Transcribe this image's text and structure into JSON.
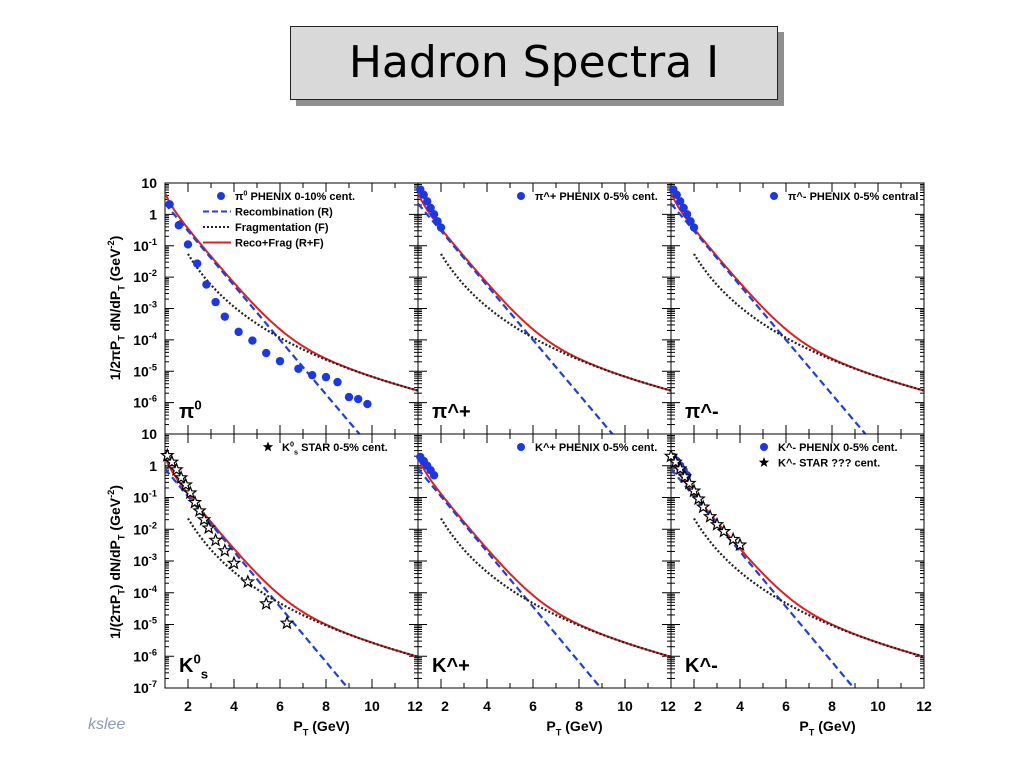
{
  "slide": {
    "title": "Hadron Spectra I",
    "footer": "kslee"
  },
  "chart_data": {
    "type": "scatter",
    "grid": false,
    "yscale": "log",
    "ylabel_top": "1/2πP_T dN/dP_T (GeV^-2)",
    "ylabel_bottom": "1/(2πP_T) dN/dP_T (GeV^-2)",
    "xlabel": "P_T (GeV)",
    "xlim": [
      1,
      12
    ],
    "x_ticks": [
      "2",
      "4",
      "6",
      "8",
      "10",
      "12"
    ],
    "panels": [
      {
        "label": "π^0",
        "ylim": [
          1e-07,
          10
        ],
        "ytick_exps": [
          1,
          0,
          -1,
          -2,
          -3,
          -4,
          -5,
          -6
        ],
        "legend": [
          {
            "marker": "dot",
            "text": "π^0 PHENIX 0-10% cent."
          },
          {
            "marker": "dash",
            "text": "Recombination (R)"
          },
          {
            "marker": "dots",
            "text": "Fragmentation (F)"
          },
          {
            "marker": "solid",
            "text": "Reco+Frag (R+F)"
          }
        ],
        "reco_norm": 2.2,
        "frag_norm": 0.055,
        "frag_start": 2.0,
        "data_dots": [
          [
            1.2,
            2.1
          ],
          [
            1.6,
            0.45
          ],
          [
            2.0,
            0.11
          ],
          [
            2.4,
            0.027
          ],
          [
            2.8,
            0.0058
          ],
          [
            3.2,
            0.0016
          ],
          [
            3.6,
            0.00055
          ],
          [
            4.2,
            0.00018
          ],
          [
            4.8,
            9.5e-05
          ],
          [
            5.4,
            3.8e-05
          ],
          [
            6.0,
            2.1e-05
          ],
          [
            6.8,
            1.2e-05
          ],
          [
            7.4,
            7.5e-06
          ],
          [
            8.0,
            6.5e-06
          ],
          [
            8.5,
            4.5e-06
          ],
          [
            9.0,
            1.5e-06
          ],
          [
            9.4,
            1.3e-06
          ],
          [
            9.8,
            9e-07
          ]
        ],
        "data_stars": []
      },
      {
        "label": "π^+",
        "ylim": [
          1e-07,
          10
        ],
        "ytick_exps": [],
        "legend": [
          {
            "marker": "dot",
            "text": "π^+ PHENIX 0-5% cent."
          }
        ],
        "reco_norm": 2.2,
        "frag_norm": 0.055,
        "frag_start": 2.0,
        "data_dots": [
          [
            1.1,
            6.2
          ],
          [
            1.25,
            4.2
          ],
          [
            1.4,
            2.6
          ],
          [
            1.55,
            1.6
          ],
          [
            1.7,
            1.0
          ],
          [
            1.85,
            0.6
          ],
          [
            2.0,
            0.38
          ]
        ],
        "data_stars": []
      },
      {
        "label": "π^-",
        "ylim": [
          1e-07,
          10
        ],
        "ytick_exps": [],
        "legend": [
          {
            "marker": "dot",
            "text": "π^- PHENIX 0-5% central"
          }
        ],
        "reco_norm": 2.2,
        "frag_norm": 0.055,
        "frag_start": 2.0,
        "data_dots": [
          [
            1.1,
            6.2
          ],
          [
            1.25,
            4.2
          ],
          [
            1.4,
            2.6
          ],
          [
            1.55,
            1.6
          ],
          [
            1.7,
            1.0
          ],
          [
            1.85,
            0.6
          ],
          [
            2.0,
            0.38
          ]
        ],
        "data_stars": []
      },
      {
        "label": "K^0_s",
        "ylim": [
          1e-07,
          10
        ],
        "ytick_exps": [
          1,
          0,
          -1,
          -2,
          -3,
          -4,
          -5,
          -6,
          -7
        ],
        "legend": [
          {
            "marker": "star",
            "text": "K^0_s STAR 0-5% cent."
          }
        ],
        "reco_norm": 0.8,
        "frag_norm": 0.022,
        "frag_start": 2.0,
        "data_dots": [],
        "data_stars": [
          [
            1.1,
            2.1
          ],
          [
            1.3,
            1.3
          ],
          [
            1.5,
            0.75
          ],
          [
            1.7,
            0.42
          ],
          [
            1.9,
            0.25
          ],
          [
            2.1,
            0.14
          ],
          [
            2.3,
            0.07
          ],
          [
            2.5,
            0.038
          ],
          [
            2.7,
            0.02
          ],
          [
            2.9,
            0.011
          ],
          [
            3.2,
            0.0045
          ],
          [
            3.6,
            0.0021
          ],
          [
            4.0,
            0.00085
          ],
          [
            4.6,
            0.00022
          ],
          [
            5.4,
            4.5e-05
          ],
          [
            6.3,
            1.1e-05
          ]
        ]
      },
      {
        "label": "K^+",
        "ylim": [
          1e-07,
          10
        ],
        "ytick_exps": [],
        "legend": [
          {
            "marker": "dot",
            "text": "K^+ PHENIX 0-5% cent."
          }
        ],
        "reco_norm": 0.8,
        "frag_norm": 0.022,
        "frag_start": 2.0,
        "data_dots": [
          [
            1.1,
            1.9
          ],
          [
            1.25,
            1.4
          ],
          [
            1.4,
            1.0
          ],
          [
            1.55,
            0.72
          ],
          [
            1.7,
            0.5
          ]
        ],
        "data_stars": []
      },
      {
        "label": "K^-",
        "ylim": [
          1e-07,
          10
        ],
        "ytick_exps": [],
        "legend": [
          {
            "marker": "dot",
            "text": "K^- PHENIX 0-5% cent."
          },
          {
            "marker": "star",
            "text": "K^- STAR ??? cent."
          }
        ],
        "reco_norm": 0.8,
        "frag_norm": 0.022,
        "frag_start": 2.0,
        "data_dots": [
          [
            1.1,
            1.9
          ],
          [
            1.25,
            1.4
          ],
          [
            1.4,
            1.0
          ],
          [
            1.55,
            0.72
          ],
          [
            1.7,
            0.5
          ]
        ],
        "data_stars": [
          [
            1.0,
            2.0
          ],
          [
            1.2,
            1.3
          ],
          [
            1.4,
            0.8
          ],
          [
            1.6,
            0.45
          ],
          [
            1.8,
            0.28
          ],
          [
            2.0,
            0.16
          ],
          [
            2.2,
            0.09
          ],
          [
            2.4,
            0.05
          ],
          [
            2.7,
            0.025
          ],
          [
            3.0,
            0.014
          ],
          [
            3.3,
            0.0085
          ],
          [
            3.7,
            0.0048
          ],
          [
            4.0,
            0.0032
          ]
        ]
      }
    ]
  }
}
